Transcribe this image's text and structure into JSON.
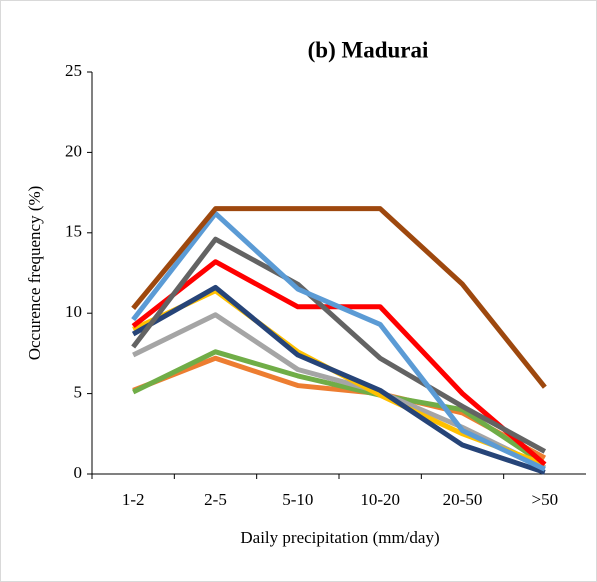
{
  "chart_data": {
    "type": "line",
    "title": "(b) Madurai",
    "xlabel": "Daily precipitation (mm/day)",
    "ylabel": "Occurence frequency (%)",
    "categories": [
      "1-2",
      "2-5",
      "5-10",
      "10-20",
      "20-50",
      ">50"
    ],
    "ylim": [
      0,
      25
    ],
    "yticks": [
      0,
      5,
      10,
      15,
      20,
      25
    ],
    "series": [
      {
        "color": "#ed7d31",
        "values": [
          5.2,
          7.2,
          5.5,
          5.0,
          3.8,
          1.0
        ]
      },
      {
        "color": "#70ad47",
        "values": [
          5.1,
          7.6,
          6.1,
          4.9,
          4.0,
          0.6
        ]
      },
      {
        "color": "#a5a5a5",
        "values": [
          7.4,
          9.9,
          6.5,
          5.1,
          2.9,
          0.4
        ]
      },
      {
        "color": "#ffc000",
        "values": [
          9.0,
          11.4,
          7.6,
          4.9,
          2.5,
          0.6
        ]
      },
      {
        "color": "#264478",
        "values": [
          8.7,
          11.6,
          7.4,
          5.2,
          1.8,
          0.1
        ]
      },
      {
        "color": "#ff0000",
        "values": [
          9.2,
          13.2,
          10.4,
          10.4,
          5.0,
          0.6
        ]
      },
      {
        "color": "#636363",
        "values": [
          7.9,
          14.6,
          11.8,
          7.2,
          4.2,
          1.4
        ]
      },
      {
        "color": "#5b9bd5",
        "values": [
          9.6,
          16.2,
          11.5,
          9.3,
          2.7,
          0.3
        ]
      },
      {
        "color": "#9e480e",
        "values": [
          10.3,
          16.5,
          16.5,
          16.5,
          11.8,
          5.4
        ]
      }
    ]
  }
}
